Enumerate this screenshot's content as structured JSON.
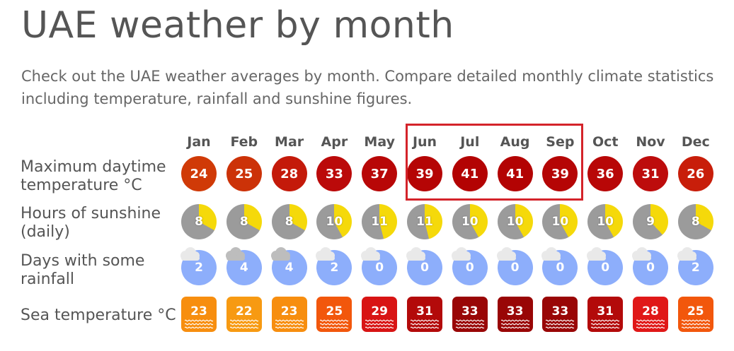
{
  "page": {
    "title": "UAE weather by month",
    "intro": "Check out the UAE weather averages by month. Compare detailed monthly climate statistics including temperature, rainfall and sunshine figures."
  },
  "rows": {
    "max_temp_label": "Maximum daytime temperature °C",
    "sunshine_label": "Hours of sunshine (daily)",
    "rain_label": "Days with some rainfall",
    "sea_label": "Sea temperature °C"
  },
  "months": [
    {
      "name": "Jan",
      "max_temp": "24",
      "sunshine": "8",
      "sun_fraction": 0.33,
      "rain_days": "2",
      "sea_temp": "23",
      "temp_color": "#d03a07",
      "sea_color": "#f78e0f"
    },
    {
      "name": "Feb",
      "max_temp": "25",
      "sunshine": "8",
      "sun_fraction": 0.33,
      "rain_days": "4",
      "sea_temp": "22",
      "temp_color": "#cc3208",
      "sea_color": "#f79a12"
    },
    {
      "name": "Mar",
      "max_temp": "28",
      "sunshine": "8",
      "sun_fraction": 0.33,
      "rain_days": "4",
      "sea_temp": "23",
      "temp_color": "#c41a0a",
      "sea_color": "#f78e0f"
    },
    {
      "name": "Apr",
      "max_temp": "33",
      "sunshine": "10",
      "sun_fraction": 0.42,
      "rain_days": "2",
      "sea_temp": "25",
      "temp_color": "#bb0a0a",
      "sea_color": "#f2570c"
    },
    {
      "name": "May",
      "max_temp": "37",
      "sunshine": "11",
      "sun_fraction": 0.46,
      "rain_days": "0",
      "sea_temp": "29",
      "temp_color": "#b80707",
      "sea_color": "#d81414"
    },
    {
      "name": "Jun",
      "max_temp": "39",
      "sunshine": "11",
      "sun_fraction": 0.46,
      "rain_days": "0",
      "sea_temp": "31",
      "temp_color": "#b50505",
      "sea_color": "#b30a0a"
    },
    {
      "name": "Jul",
      "max_temp": "41",
      "sunshine": "10",
      "sun_fraction": 0.42,
      "rain_days": "0",
      "sea_temp": "33",
      "temp_color": "#b30303",
      "sea_color": "#990606"
    },
    {
      "name": "Aug",
      "max_temp": "41",
      "sunshine": "10",
      "sun_fraction": 0.42,
      "rain_days": "0",
      "sea_temp": "33",
      "temp_color": "#b30303",
      "sea_color": "#990606"
    },
    {
      "name": "Sep",
      "max_temp": "39",
      "sunshine": "10",
      "sun_fraction": 0.42,
      "rain_days": "0",
      "sea_temp": "33",
      "temp_color": "#b50505",
      "sea_color": "#990606"
    },
    {
      "name": "Oct",
      "max_temp": "36",
      "sunshine": "10",
      "sun_fraction": 0.42,
      "rain_days": "0",
      "sea_temp": "31",
      "temp_color": "#b80707",
      "sea_color": "#b30a0a"
    },
    {
      "name": "Nov",
      "max_temp": "31",
      "sunshine": "9",
      "sun_fraction": 0.38,
      "rain_days": "0",
      "sea_temp": "28",
      "temp_color": "#bd0c0c",
      "sea_color": "#e01818"
    },
    {
      "name": "Dec",
      "max_temp": "26",
      "sunshine": "8",
      "sun_fraction": 0.33,
      "rain_days": "2",
      "sea_temp": "25",
      "temp_color": "#c81e0a",
      "sea_color": "#f2570c"
    }
  ],
  "colors": {
    "sun_yellow": "#f5d90a",
    "sun_grey": "#9b9b9b",
    "rain_blue": "#8daefb",
    "cloud_white": "#e9e9e9",
    "cloud_grey": "#bdbdbd",
    "highlight_red": "#d4232a"
  },
  "icons": {
    "cloud": "cloud-icon",
    "wave": "wave-icon"
  },
  "highlighted_months": [
    "Jun",
    "Jul",
    "Aug",
    "Sep"
  ]
}
